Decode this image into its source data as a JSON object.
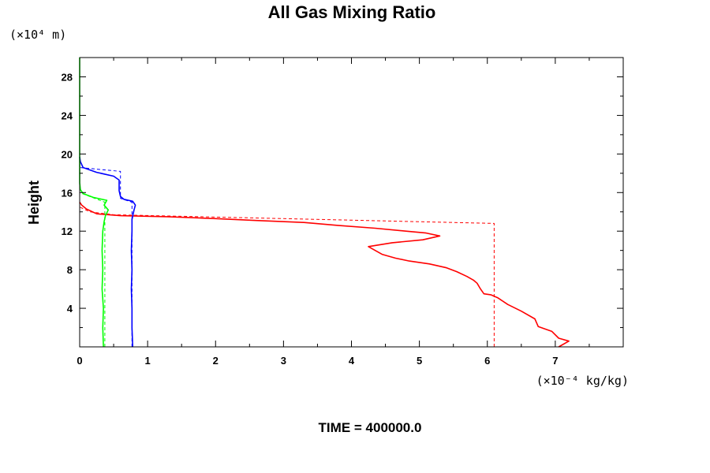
{
  "chart_data": {
    "type": "line",
    "title": "All Gas Mixing Ratio",
    "ylabel": "Height",
    "y_unit_label": "(×10⁴ m)",
    "x_unit_label": "(×10⁻⁴ kg/kg)",
    "xlim": [
      0,
      8
    ],
    "ylim": [
      0,
      30
    ],
    "x_ticks": [
      "0",
      "1",
      "2",
      "3",
      "4",
      "5",
      "6",
      "7"
    ],
    "y_ticks": [
      "4",
      "8",
      "12",
      "16",
      "20",
      "24",
      "28"
    ],
    "grid": false,
    "legend": "none",
    "series": [
      {
        "color": "#ff0000",
        "style": "solid",
        "points": [
          [
            7.05,
            0
          ],
          [
            7.2,
            0.6
          ],
          [
            7.05,
            0.9
          ],
          [
            6.95,
            1.6
          ],
          [
            6.75,
            2.1
          ],
          [
            6.7,
            2.9
          ],
          [
            6.5,
            3.7
          ],
          [
            6.3,
            4.4
          ],
          [
            6.15,
            5.1
          ],
          [
            6.05,
            5.4
          ],
          [
            5.95,
            5.5
          ],
          [
            5.9,
            6.0
          ],
          [
            5.85,
            6.6
          ],
          [
            5.8,
            6.9
          ],
          [
            5.7,
            7.3
          ],
          [
            5.55,
            7.8
          ],
          [
            5.4,
            8.2
          ],
          [
            5.15,
            8.6
          ],
          [
            4.85,
            8.9
          ],
          [
            4.65,
            9.2
          ],
          [
            4.45,
            9.6
          ],
          [
            4.35,
            10.0
          ],
          [
            4.25,
            10.4
          ],
          [
            4.6,
            10.8
          ],
          [
            5.05,
            11.1
          ],
          [
            5.3,
            11.5
          ],
          [
            5.1,
            11.8
          ],
          [
            4.8,
            12.0
          ],
          [
            4.35,
            12.3
          ],
          [
            3.8,
            12.6
          ],
          [
            3.3,
            12.9
          ],
          [
            2.6,
            13.1
          ],
          [
            2.0,
            13.3
          ],
          [
            1.3,
            13.5
          ],
          [
            0.6,
            13.6
          ],
          [
            0.25,
            13.8
          ],
          [
            0.1,
            14.3
          ],
          [
            0.03,
            14.7
          ],
          [
            0.0,
            15.0
          ]
        ]
      },
      {
        "color": "#ff0000",
        "style": "dashed",
        "points": [
          [
            6.1,
            0
          ],
          [
            6.1,
            12.8
          ],
          [
            0.5,
            13.7
          ],
          [
            0.15,
            14.0
          ],
          [
            0.0,
            14.5
          ]
        ]
      },
      {
        "color": "#0000ff",
        "style": "solid",
        "points": [
          [
            0.78,
            0
          ],
          [
            0.77,
            2.0
          ],
          [
            0.77,
            4.0
          ],
          [
            0.76,
            6.0
          ],
          [
            0.77,
            8.0
          ],
          [
            0.76,
            10.0
          ],
          [
            0.77,
            12.0
          ],
          [
            0.77,
            13.2
          ],
          [
            0.8,
            14.2
          ],
          [
            0.82,
            14.7
          ],
          [
            0.78,
            15.1
          ],
          [
            0.65,
            15.3
          ],
          [
            0.6,
            15.6
          ],
          [
            0.58,
            16.2
          ],
          [
            0.58,
            17.3
          ],
          [
            0.5,
            17.7
          ],
          [
            0.25,
            18.1
          ],
          [
            0.05,
            18.6
          ],
          [
            0.01,
            19.2
          ],
          [
            0.0,
            19.7
          ]
        ]
      },
      {
        "color": "#0000ff",
        "style": "dashed",
        "points": [
          [
            0.77,
            0
          ],
          [
            0.77,
            15.0
          ],
          [
            0.6,
            15.4
          ],
          [
            0.6,
            18.2
          ],
          [
            0.0,
            18.6
          ]
        ]
      },
      {
        "color": "#00ff00",
        "style": "solid",
        "points": [
          [
            0.35,
            0
          ],
          [
            0.34,
            2.0
          ],
          [
            0.35,
            4.0
          ],
          [
            0.33,
            6.0
          ],
          [
            0.34,
            8.0
          ],
          [
            0.33,
            10.0
          ],
          [
            0.34,
            12.0
          ],
          [
            0.36,
            13.0
          ],
          [
            0.38,
            13.6
          ],
          [
            0.42,
            14.2
          ],
          [
            0.36,
            14.7
          ],
          [
            0.4,
            15.2
          ],
          [
            0.2,
            15.5
          ],
          [
            0.05,
            15.9
          ],
          [
            0.01,
            16.3
          ],
          [
            0.0,
            17.0
          ],
          [
            0.0,
            30.0
          ]
        ]
      },
      {
        "color": "#00ff00",
        "style": "dashed",
        "points": [
          [
            0.37,
            0
          ],
          [
            0.37,
            15.0
          ],
          [
            0.0,
            16.0
          ]
        ]
      }
    ]
  },
  "footer": {
    "time_label": "TIME = 400000.0"
  }
}
